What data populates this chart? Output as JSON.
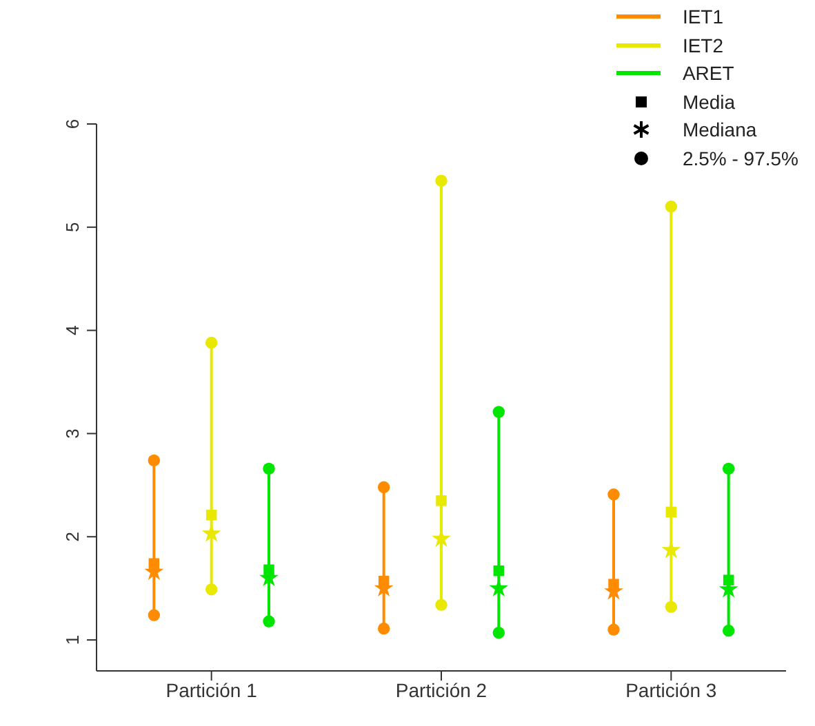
{
  "chart_data": {
    "type": "scatter",
    "categories": [
      "Partición 1",
      "Partición 2",
      "Partición 3"
    ],
    "series": [
      {
        "name": "IET1",
        "color": "#ff8c00",
        "marker": "square",
        "values": [
          1.74,
          1.57,
          1.54
        ]
      },
      {
        "name": "IET2",
        "color": "#e8e800",
        "marker": "square",
        "values": [
          2.21,
          2.35,
          2.24
        ]
      },
      {
        "name": "ARET",
        "color": "#00e600",
        "marker": "square",
        "values": [
          1.68,
          1.67,
          1.58
        ]
      },
      {
        "color": "#ff8c00",
        "marker": "star",
        "values": [
          1.66,
          1.5,
          1.47
        ]
      },
      {
        "color": "#e8e800",
        "marker": "star",
        "values": [
          2.03,
          1.98,
          1.87
        ]
      },
      {
        "color": "#00e600",
        "marker": "star",
        "values": [
          1.6,
          1.5,
          1.49
        ]
      },
      {
        "color": "#ff8c00",
        "marker": "circle",
        "values": [
          1.24,
          1.11,
          1.1
        ]
      },
      {
        "color": "#e8e800",
        "marker": "circle",
        "values": [
          1.49,
          1.34,
          1.32
        ]
      },
      {
        "color": "#00e600",
        "marker": "circle",
        "values": [
          1.18,
          1.07,
          1.09
        ]
      },
      {
        "color": "#ff8c00",
        "marker": "circle",
        "values": [
          2.74,
          2.48,
          2.41
        ]
      },
      {
        "color": "#e8e800",
        "marker": "circle",
        "values": [
          3.88,
          5.45,
          5.2
        ]
      },
      {
        "color": "#00e600",
        "marker": "circle",
        "values": [
          2.66,
          3.21,
          2.66
        ]
      }
    ],
    "ylim": [
      0.7,
      6
    ],
    "yticks": [
      1,
      2,
      3,
      4,
      5,
      6
    ],
    "legend": "top right",
    "annotations": [
      "Media",
      "Mediana",
      "2.5% - 97.5%"
    ]
  }
}
